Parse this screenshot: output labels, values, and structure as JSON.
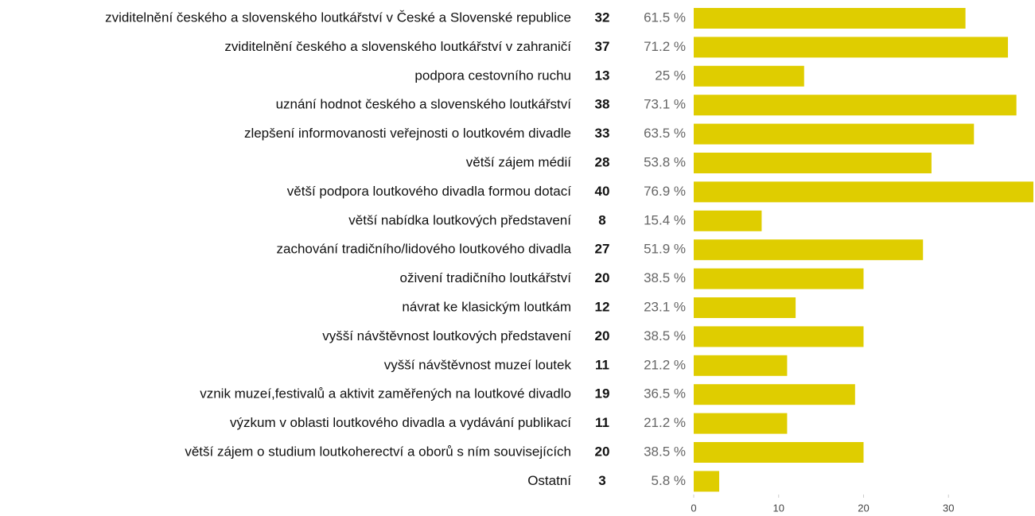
{
  "chart_data": {
    "type": "bar",
    "orientation": "horizontal",
    "color": "#dfcd00",
    "categories": [
      "zviditelnění českého a slovenského loutkářství v České a Slovenské republice",
      "zviditelnění českého a slovenského loutkářství v zahraničí",
      "podpora cestovního ruchu",
      "uznání hodnot českého a slovenského loutkářství",
      "zlepšení informovanosti veřejnosti o loutkovém divadle",
      "větší zájem médií",
      "větší podpora loutkového divadla formou dotací",
      "větší nabídka loutkových představení",
      "zachování tradičního/lidového loutkového divadla",
      "oživení tradičního loutkářství",
      "návrat ke klasickým loutkám",
      "vyšší návštěvnost loutkových představení",
      "vyšší návštěvnost muzeí loutek",
      "vznik muzeí,festivalů a aktivit zaměřených na loutkové divadlo",
      "výzkum v oblasti loutkového divadla a vydávání publikací",
      "větší zájem o studium loutkoherectví a oborů s ním souvisejících",
      "Ostatní"
    ],
    "values": [
      32,
      37,
      13,
      38,
      33,
      28,
      40,
      8,
      27,
      20,
      12,
      20,
      11,
      19,
      11,
      20,
      3
    ],
    "percent_labels": [
      "61.5 %",
      "71.2 %",
      "25 %",
      "73.1 %",
      "63.5 %",
      "53.8 %",
      "76.9 %",
      "15.4 %",
      "51.9 %",
      "38.5 %",
      "23.1 %",
      "38.5 %",
      "21.2 %",
      "36.5 %",
      "21.2 %",
      "38.5 %",
      "5.8 %"
    ],
    "xlim": [
      0,
      40
    ],
    "xticks": [
      0,
      10,
      20,
      30
    ]
  }
}
